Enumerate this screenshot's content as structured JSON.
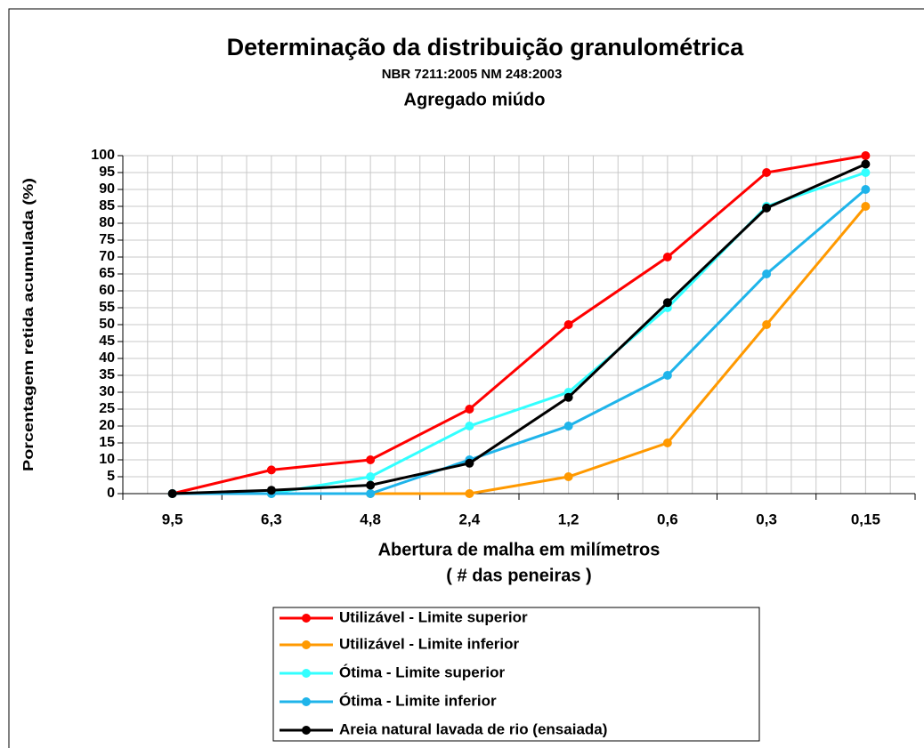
{
  "chart_data": {
    "type": "line",
    "title": "Determinação da distribuição granulométrica",
    "subtitle": "NBR 7211:2005  NM 248:2003",
    "subtitle2": "Agregado miúdo",
    "x_label": "Abertura de malha em milímetros",
    "x_label2": "( # das peneiras )",
    "y_label": "Porcentagem retida acumulada (%)",
    "categories": [
      "9,5",
      "6,3",
      "4,8",
      "2,4",
      "1,2",
      "0,6",
      "0,3",
      "0,15"
    ],
    "series": [
      {
        "name": "Utilizável - Limite superior",
        "color": "#ff0000",
        "values": [
          0,
          7,
          10,
          25,
          50,
          70,
          95,
          100
        ]
      },
      {
        "name": "Utilizável - Limite inferior",
        "color": "#ff9900",
        "values": [
          0,
          0,
          0,
          0,
          5,
          15,
          50,
          85
        ]
      },
      {
        "name": "Ótima - Limite superior",
        "color": "#33ffff",
        "values": [
          0,
          0,
          5,
          20,
          30,
          55,
          85,
          95
        ]
      },
      {
        "name": "Ótima - Limite inferior",
        "color": "#1fb4ea",
        "values": [
          0,
          0,
          0,
          10,
          20,
          35,
          65,
          90
        ]
      },
      {
        "name": "Areia natural lavada de rio (ensaiada)",
        "color": "#000000",
        "values": [
          0,
          1,
          2.5,
          9,
          28.5,
          56.5,
          84.5,
          97.5
        ]
      }
    ],
    "ylim": [
      0,
      100
    ],
    "yticks": [
      0,
      5,
      10,
      15,
      20,
      25,
      30,
      35,
      40,
      45,
      50,
      55,
      60,
      65,
      70,
      75,
      80,
      85,
      90,
      95,
      100
    ],
    "grid": true,
    "legend": "bottom"
  }
}
